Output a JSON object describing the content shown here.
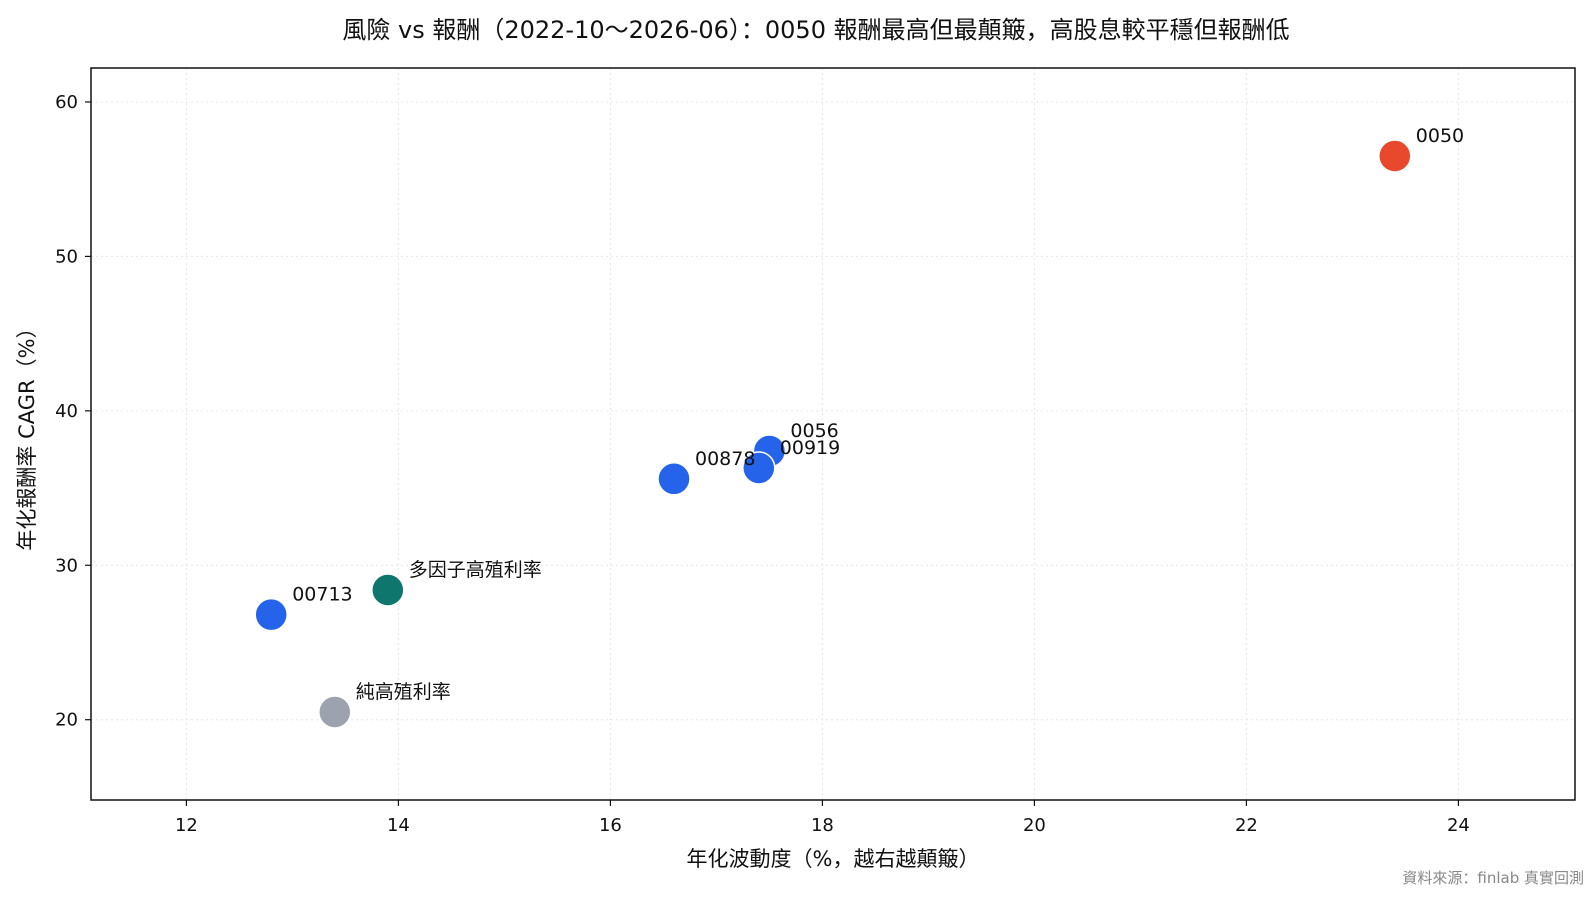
{
  "chart_data": {
    "type": "scatter",
    "title": "風險 vs 報酬（2022-10～2026-06）：0050 報酬最高但最顛簸，高股息較平穩但報酬低",
    "xlabel": "年化波動度（%，越右越顛簸）",
    "ylabel": "年化報酬率 CAGR（%）",
    "xlim": [
      11.1,
      25.1
    ],
    "ylim": [
      14.8,
      62.2
    ],
    "xticks": [
      12,
      14,
      16,
      18,
      20,
      22,
      24
    ],
    "yticks": [
      20,
      30,
      40,
      50,
      60
    ],
    "grid": true,
    "points": [
      {
        "label": "0050",
        "x": 23.4,
        "y": 56.5,
        "color": "#e8492c"
      },
      {
        "label": "0056",
        "x": 17.5,
        "y": 37.4,
        "color": "#2563eb"
      },
      {
        "label": "00919",
        "x": 17.4,
        "y": 36.3,
        "color": "#2563eb"
      },
      {
        "label": "00878",
        "x": 16.6,
        "y": 35.6,
        "color": "#2563eb"
      },
      {
        "label": "多因子高殖利率",
        "x": 13.9,
        "y": 28.4,
        "color": "#0f766e"
      },
      {
        "label": "00713",
        "x": 12.8,
        "y": 26.8,
        "color": "#2563eb"
      },
      {
        "label": "純高殖利率",
        "x": 13.4,
        "y": 20.5,
        "color": "#9ca3af"
      }
    ]
  },
  "source_note": "資料來源：finlab 真實回測"
}
